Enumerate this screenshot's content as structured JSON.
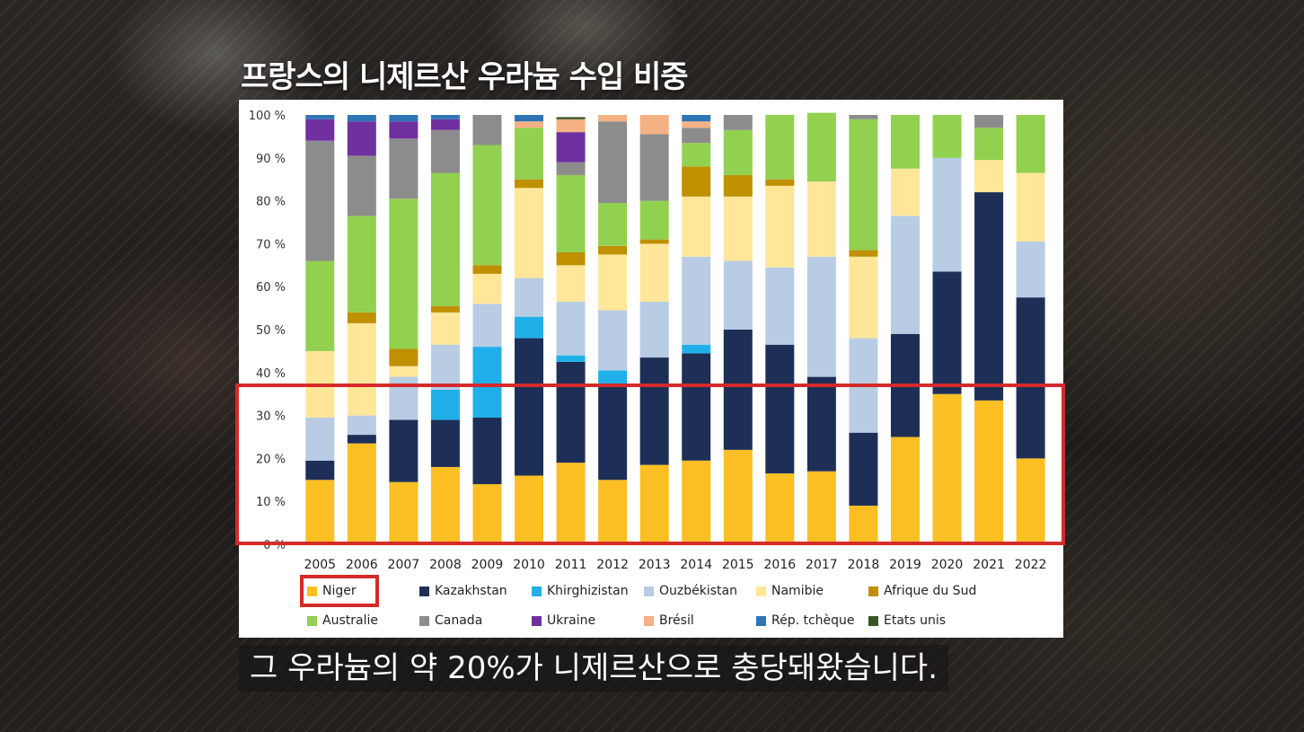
{
  "headline": "프랑스의 니제르산 우라늄 수입 비중",
  "subtitle": "그 우라늄의 약 20%가 니제르산으로 충당돼왔습니다.",
  "highlight_color": "#d42a2a",
  "chart_data": {
    "type": "bar",
    "stacked": true,
    "title": "",
    "xlabel": "",
    "ylabel": "",
    "ylim": [
      0,
      100
    ],
    "yticks": [
      "0 %",
      "10 %",
      "20 %",
      "30 %",
      "40 %",
      "50 %",
      "60 %",
      "70 %",
      "80 %",
      "90 %",
      "100 %"
    ],
    "grid": false,
    "legend_position": "bottom",
    "highlighted_series": "Niger",
    "categories": [
      "2005",
      "2006",
      "2007",
      "2008",
      "2009",
      "2010",
      "2011",
      "2012",
      "2013",
      "2014",
      "2015",
      "2016",
      "2017",
      "2018",
      "2019",
      "2020",
      "2021",
      "2022"
    ],
    "series": [
      {
        "name": "Niger",
        "color": "#fbbf24",
        "values": [
          15,
          23.5,
          14.5,
          18,
          14,
          16,
          19,
          15,
          18.5,
          19.5,
          22,
          16.5,
          17,
          9,
          25,
          35,
          33.5,
          20
        ]
      },
      {
        "name": "Kazakhstan",
        "color": "#1e2f57",
        "values": [
          4.5,
          2,
          14.5,
          11,
          15.5,
          32,
          23.5,
          22,
          25,
          25,
          28,
          30,
          22,
          17,
          24,
          28.5,
          48.5,
          37.5
        ]
      },
      {
        "name": "Khirghizistan",
        "color": "#1fb0ea",
        "values": [
          0,
          0,
          0,
          7,
          16.5,
          5,
          1.5,
          3.5,
          0,
          2,
          0,
          0,
          0,
          0,
          0,
          0,
          0,
          0
        ]
      },
      {
        "name": "Ouzbékistan",
        "color": "#b8cce4",
        "values": [
          10,
          4.5,
          10,
          10.5,
          10,
          9,
          12.5,
          14,
          13,
          20.5,
          16,
          18,
          28,
          22,
          27.5,
          26.5,
          0,
          13
        ]
      },
      {
        "name": "Namibie",
        "color": "#ffe699",
        "values": [
          15.5,
          21.5,
          2.5,
          7.5,
          7,
          21,
          8.5,
          13,
          13.5,
          14,
          15,
          19,
          17.5,
          19,
          11,
          0,
          7.5,
          16
        ]
      },
      {
        "name": "Afrique du Sud",
        "color": "#bf9000",
        "values": [
          0,
          2.5,
          4,
          1.5,
          2,
          2,
          3,
          2,
          1,
          7,
          5,
          1.5,
          0,
          1.5,
          0,
          0,
          0,
          0
        ]
      },
      {
        "name": "Australie",
        "color": "#92d050",
        "values": [
          21,
          22.5,
          35,
          31,
          28,
          12,
          18,
          10,
          9,
          5.5,
          10.5,
          15,
          16,
          30.5,
          12.5,
          10,
          7.5,
          13.5
        ]
      },
      {
        "name": "Canada",
        "color": "#8c8c8c",
        "values": [
          28,
          14,
          14,
          10,
          7,
          0,
          3,
          19,
          15.5,
          3.5,
          3.5,
          0,
          0,
          1,
          0,
          0,
          3,
          0
        ]
      },
      {
        "name": "Ukraine",
        "color": "#7030a0",
        "values": [
          5,
          8,
          4,
          2.5,
          0,
          0,
          7,
          0,
          0,
          0,
          0,
          0,
          0,
          0,
          0,
          0,
          0,
          0
        ]
      },
      {
        "name": "Brésil",
        "color": "#f4b183",
        "values": [
          0,
          0,
          0,
          0,
          0,
          1.5,
          3,
          1.5,
          4.5,
          1.5,
          0,
          0,
          0,
          0,
          0,
          0,
          0,
          0
        ]
      },
      {
        "name": "Rép. tchèque",
        "color": "#2e75b6",
        "values": [
          1,
          1.5,
          1.5,
          1,
          0,
          1.5,
          0,
          0,
          0,
          1.5,
          0,
          0,
          0,
          0,
          0,
          0,
          0,
          0
        ]
      },
      {
        "name": "Etats unis",
        "color": "#375623",
        "values": [
          0,
          0,
          0,
          0,
          0,
          0,
          0.5,
          0,
          0,
          0,
          0,
          0,
          0,
          0,
          0,
          0,
          0,
          0
        ]
      }
    ]
  }
}
